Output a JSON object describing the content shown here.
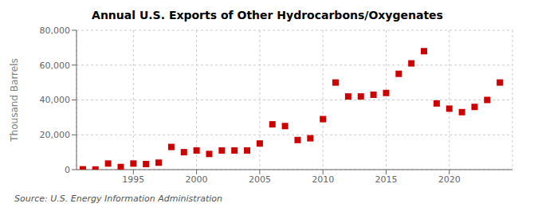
{
  "chart_data": {
    "type": "scatter",
    "title": "Annual U.S. Exports of Other Hydrocarbons/Oxygenates",
    "ylabel": "Thousand Barrels",
    "annotations": [
      "Source: U.S. Energy Information Administration"
    ],
    "x": [
      1991,
      1992,
      1993,
      1994,
      1995,
      1996,
      1997,
      1998,
      1999,
      2000,
      2001,
      2002,
      2003,
      2004,
      2005,
      2006,
      2007,
      2008,
      2009,
      2010,
      2011,
      2012,
      2013,
      2014,
      2015,
      2016,
      2017,
      2018,
      2019,
      2020,
      2021,
      2022,
      2023,
      2024
    ],
    "values": [
      200,
      100,
      3500,
      1500,
      3500,
      3200,
      4000,
      13000,
      10000,
      11000,
      9000,
      11000,
      11000,
      11000,
      15000,
      26000,
      25000,
      17000,
      18000,
      29000,
      50000,
      42000,
      42000,
      43000,
      44000,
      55000,
      61000,
      68000,
      38000,
      35000,
      33000,
      36000,
      40000,
      50000
    ],
    "color": "#cc0000",
    "marker": "square",
    "xlim": [
      1990.5,
      2025
    ],
    "xticks": [
      1995,
      2000,
      2005,
      2010,
      2015,
      2020
    ],
    "ylim": [
      0,
      80000
    ],
    "yticks": [
      0,
      {
        "value": 20000,
        "label": "20,000"
      },
      {
        "value": 40000,
        "label": "40,000"
      },
      {
        "value": 60000,
        "label": "60,000"
      },
      {
        "value": 80000,
        "label": "80,000"
      }
    ],
    "grid": true
  }
}
